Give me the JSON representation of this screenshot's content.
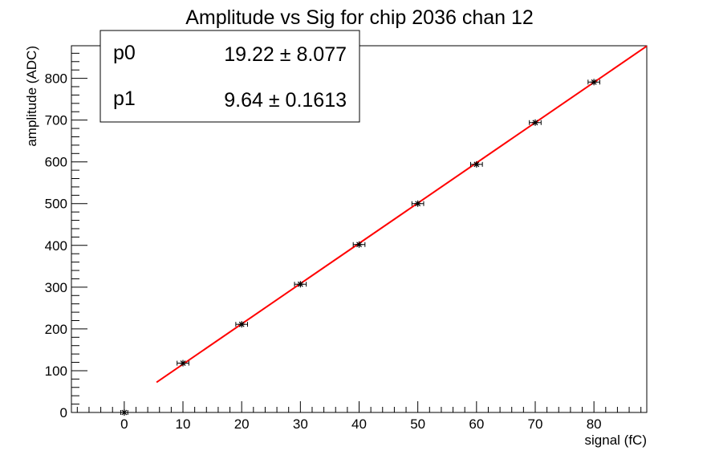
{
  "chart_data": {
    "type": "scatter",
    "title": "Amplitude vs Sig for chip 2036 chan 12",
    "xlabel": "signal (fC)",
    "ylabel": "amplitude (ADC)",
    "xlim": [
      -9,
      89
    ],
    "ylim": [
      0,
      878
    ],
    "x_ticks": [
      0,
      10,
      20,
      30,
      40,
      50,
      60,
      70,
      80
    ],
    "y_ticks": [
      0,
      100,
      200,
      300,
      400,
      500,
      600,
      700,
      800
    ],
    "x_tick_labels": [
      "0",
      "10",
      "20",
      "30",
      "40",
      "50",
      "60",
      "70",
      "80"
    ],
    "y_tick_labels": [
      "0",
      "100",
      "200",
      "300",
      "400",
      "500",
      "600",
      "700",
      "800"
    ],
    "grid": false,
    "points": {
      "x": [
        0,
        10,
        20,
        30,
        40,
        50,
        60,
        70,
        80
      ],
      "y": [
        0,
        118,
        211,
        307,
        402,
        500,
        594,
        694,
        791
      ],
      "x_err": [
        0.6,
        1,
        1,
        1,
        1,
        1,
        1,
        1,
        1
      ],
      "y_err": [
        2,
        4,
        4,
        4,
        4,
        4,
        4,
        4,
        4
      ],
      "color": "#000000"
    },
    "fit": {
      "x_range": [
        5.5,
        89
      ],
      "p0": 19.22,
      "p1": 9.64,
      "color": "#ff0000"
    },
    "stats_box": {
      "position": "top-left",
      "rows": [
        {
          "name": "p0",
          "value": "19.22 ± 8.077"
        },
        {
          "name": "p1",
          "value": "9.64 ± 0.1613"
        }
      ]
    }
  }
}
